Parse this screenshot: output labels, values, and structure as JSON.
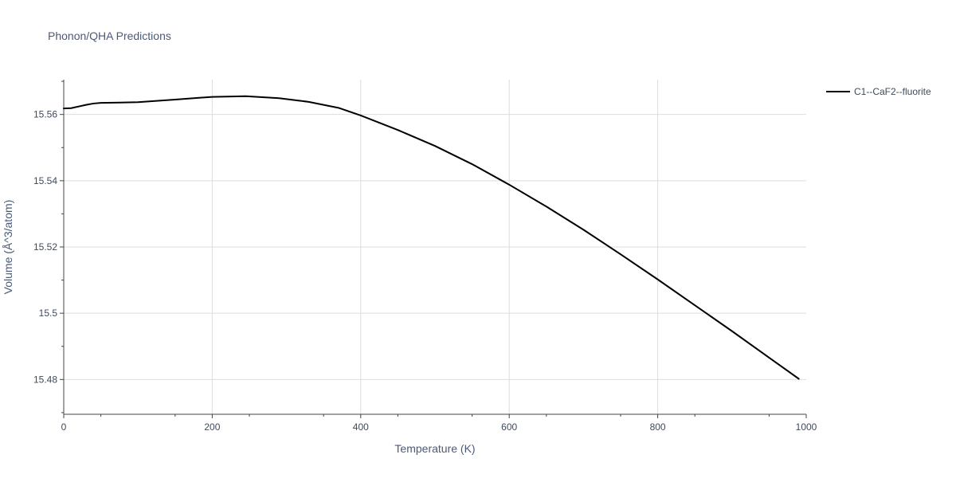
{
  "chart_data": {
    "type": "line",
    "title": "Phonon/QHA Predictions",
    "xlabel": "Temperature (K)",
    "ylabel": "Volume (Å^3/atom)",
    "xlim": [
      0,
      1000
    ],
    "ylim": [
      15.4695,
      15.5705
    ],
    "grid": true,
    "legend_position": "top-right",
    "x_ticks": [
      0,
      200,
      400,
      600,
      800,
      1000
    ],
    "x_tick_labels": [
      "0",
      "200",
      "400",
      "600",
      "800",
      "1000"
    ],
    "y_ticks": [
      15.48,
      15.5,
      15.52,
      15.54,
      15.56
    ],
    "y_tick_labels": [
      "15.48",
      "15.5",
      "15.52",
      "15.54",
      "15.56"
    ],
    "series": [
      {
        "name": "C1--CaF2--fluorite",
        "color": "#000000",
        "x": [
          0,
          10,
          20,
          30,
          40,
          50,
          75,
          100,
          150,
          200,
          245,
          290,
          330,
          370,
          400,
          450,
          500,
          550,
          600,
          650,
          700,
          750,
          800,
          850,
          900,
          950,
          990
        ],
        "y": [
          15.5618,
          15.5619,
          15.5624,
          15.5629,
          15.5633,
          15.5635,
          15.5636,
          15.5637,
          15.5645,
          15.5653,
          15.5655,
          15.5649,
          15.5638,
          15.562,
          15.5597,
          15.5553,
          15.5505,
          15.545,
          15.5388,
          15.5322,
          15.5252,
          15.5178,
          15.5102,
          15.5024,
          15.4946,
          15.4866,
          15.4802
        ]
      }
    ]
  }
}
